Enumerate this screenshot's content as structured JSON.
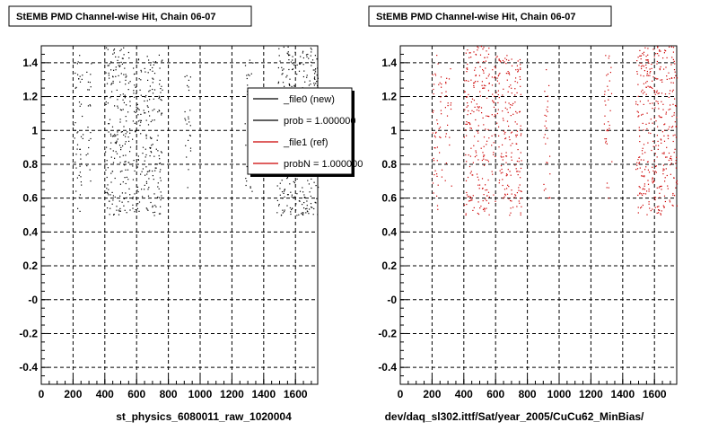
{
  "colors": {
    "ref_series": "#cc0000",
    "new_series": "#000000",
    "background": "#ffffff",
    "grid": "#000000"
  },
  "chart_data": [
    {
      "type": "scatter",
      "title": "StEMB PMD Channel-wise Hit, Chain 06-07",
      "xlabel": "st_physics_6080011_raw_1020004",
      "ylabel": "",
      "xlim": [
        0,
        1740
      ],
      "ylim": [
        -0.5,
        1.5
      ],
      "x_ticks": [
        "0",
        "200",
        "400",
        "600",
        "800",
        "1000",
        "1200",
        "1400",
        "1600"
      ],
      "y_ticks": [
        "-0.4",
        "-0.2",
        "-0",
        "0.2",
        "0.4",
        "0.6",
        "0.8",
        "1",
        "1.2",
        "1.4"
      ],
      "grid": true,
      "legend_position": "top-right",
      "legend": [
        {
          "label": "_file0 (new)",
          "color": "#000000"
        },
        {
          "label": "prob = 1.000000",
          "color": "#000000"
        },
        {
          "label": "_file1 (ref)",
          "color": "#cc0000"
        },
        {
          "label": "probN = 1.000000",
          "color": "#cc0000"
        }
      ],
      "series": [
        {
          "color": "#000000",
          "clusters": [
            {
              "x": [
                200,
                260
              ],
              "y": [
                0.52,
                1.45
              ],
              "density": 0.6
            },
            {
              "x": [
                280,
                320
              ],
              "y": [
                0.6,
                1.4
              ],
              "density": 0.4
            },
            {
              "x": [
                400,
                560
              ],
              "y": [
                0.5,
                1.5
              ],
              "density": 0.9
            },
            {
              "x": [
                570,
                760
              ],
              "y": [
                0.5,
                1.45
              ],
              "density": 0.8
            },
            {
              "x": [
                900,
                940
              ],
              "y": [
                0.6,
                1.45
              ],
              "density": 0.5
            },
            {
              "x": [
                1280,
                1330
              ],
              "y": [
                0.6,
                1.45
              ],
              "density": 0.5
            },
            {
              "x": [
                1480,
                1740
              ],
              "y": [
                0.5,
                1.5
              ],
              "density": 1.0
            }
          ]
        }
      ]
    },
    {
      "type": "scatter",
      "title": "StEMB PMD Channel-wise Hit, Chain 06-07",
      "xlabel": "dev/daq_sl302.ittf/Sat/year_2005/CuCu62_MinBias/",
      "ylabel": "",
      "xlim": [
        0,
        1740
      ],
      "ylim": [
        -0.5,
        1.5
      ],
      "x_ticks": [
        "0",
        "200",
        "400",
        "600",
        "800",
        "1000",
        "1200",
        "1400",
        "1600"
      ],
      "y_ticks": [
        "-0.4",
        "-0.2",
        "-0",
        "0.2",
        "0.4",
        "0.6",
        "0.8",
        "1",
        "1.2",
        "1.4"
      ],
      "grid": true,
      "series": [
        {
          "color": "#cc0000",
          "clusters": [
            {
              "x": [
                200,
                260
              ],
              "y": [
                0.52,
                1.45
              ],
              "density": 0.6
            },
            {
              "x": [
                280,
                320
              ],
              "y": [
                0.6,
                1.4
              ],
              "density": 0.4
            },
            {
              "x": [
                400,
                560
              ],
              "y": [
                0.5,
                1.5
              ],
              "density": 0.9
            },
            {
              "x": [
                570,
                760
              ],
              "y": [
                0.5,
                1.45
              ],
              "density": 0.8
            },
            {
              "x": [
                900,
                940
              ],
              "y": [
                0.6,
                1.45
              ],
              "density": 0.5
            },
            {
              "x": [
                1280,
                1330
              ],
              "y": [
                0.6,
                1.45
              ],
              "density": 0.5
            },
            {
              "x": [
                1480,
                1740
              ],
              "y": [
                0.5,
                1.5
              ],
              "density": 1.0
            }
          ]
        }
      ]
    }
  ]
}
